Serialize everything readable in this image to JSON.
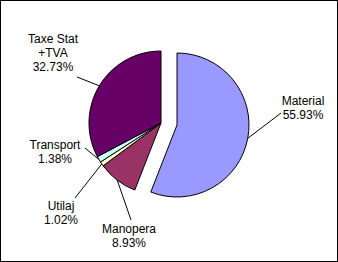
{
  "chart_data": {
    "type": "pie",
    "categories": [
      "Material",
      "Manopera",
      "Utilaj",
      "Transport",
      "Taxe Stat +TVA"
    ],
    "values": [
      55.93,
      8.93,
      1.02,
      1.38,
      32.73
    ],
    "value_labels": [
      "55.93%",
      "8.93%",
      "1.02%",
      "1.38%",
      "32.73%"
    ],
    "colors": [
      "#9999ff",
      "#993366",
      "#ffffcc",
      "#ccffff",
      "#660066"
    ],
    "data_labels": true
  }
}
